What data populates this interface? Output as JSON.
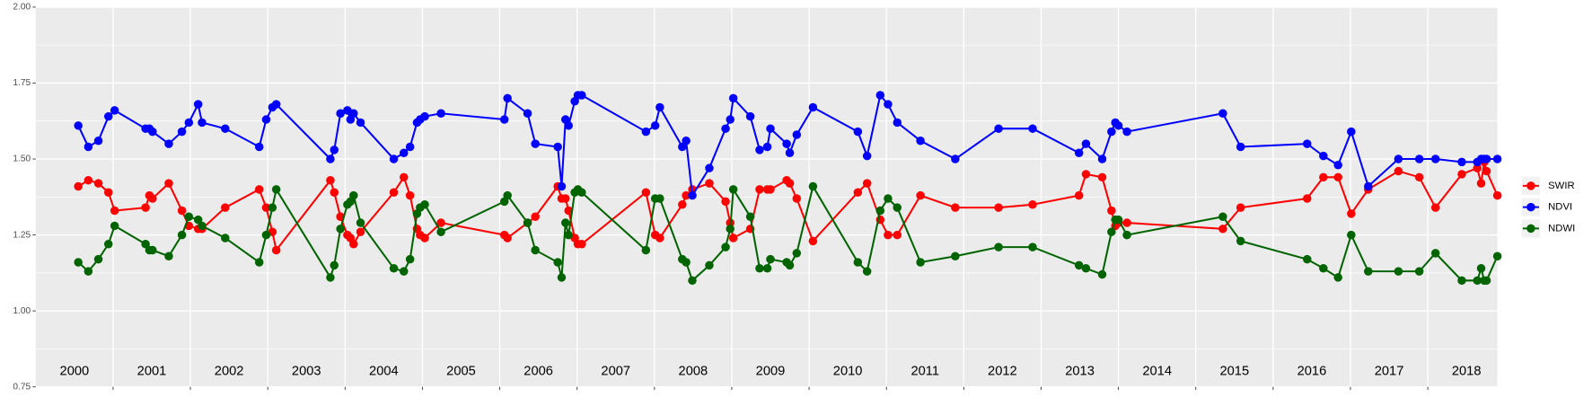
{
  "chart_data": {
    "type": "line",
    "x": [
      2000.55,
      2000.68,
      2000.81,
      2000.94,
      2001.02,
      2001.42,
      2001.47,
      2001.51,
      2001.72,
      2001.89,
      2001.98,
      2002.1,
      2002.15,
      2002.45,
      2002.89,
      2002.98,
      2003.06,
      2003.11,
      2003.81,
      2003.86,
      2003.94,
      2004.03,
      2004.07,
      2004.11,
      2004.2,
      2004.63,
      2004.76,
      2004.84,
      2004.93,
      2004.97,
      2005.03,
      2005.24,
      2006.06,
      2006.1,
      2006.36,
      2006.46,
      2006.75,
      2006.8,
      2006.85,
      2006.89,
      2006.97,
      2007.01,
      2007.06,
      2007.89,
      2008.01,
      2008.07,
      2008.36,
      2008.41,
      2008.49,
      2008.71,
      2008.92,
      2008.98,
      2009.02,
      2009.24,
      2009.36,
      2009.46,
      2009.5,
      2009.71,
      2009.75,
      2009.84,
      2010.05,
      2010.63,
      2010.75,
      2010.92,
      2011.02,
      2011.14,
      2011.44,
      2011.89,
      2012.45,
      2012.89,
      2013.49,
      2013.58,
      2013.79,
      2013.91,
      2013.96,
      2014.0,
      2014.11,
      2015.35,
      2015.58,
      2016.44,
      2016.65,
      2016.84,
      2017.01,
      2017.23,
      2017.62,
      2017.89,
      2018.1,
      2018.44,
      2018.64,
      2018.69,
      2018.73,
      2018.76,
      2018.9
    ],
    "series": [
      {
        "name": "SWIR",
        "color": "#ff0000",
        "values": [
          1.41,
          1.43,
          1.42,
          1.39,
          1.33,
          1.34,
          1.38,
          1.37,
          1.42,
          1.33,
          1.28,
          1.27,
          1.27,
          1.34,
          1.4,
          1.34,
          1.26,
          1.2,
          1.43,
          1.39,
          1.31,
          1.25,
          1.24,
          1.22,
          1.26,
          1.39,
          1.44,
          1.38,
          1.27,
          1.25,
          1.24,
          1.29,
          1.25,
          1.24,
          1.29,
          1.31,
          1.41,
          1.37,
          1.37,
          1.33,
          1.24,
          1.22,
          1.22,
          1.39,
          1.25,
          1.24,
          1.35,
          1.38,
          1.4,
          1.42,
          1.36,
          1.29,
          1.24,
          1.27,
          1.4,
          1.4,
          1.4,
          1.43,
          1.42,
          1.37,
          1.23,
          1.39,
          1.42,
          1.3,
          1.25,
          1.25,
          1.38,
          1.34,
          1.34,
          1.35,
          1.38,
          1.45,
          1.44,
          1.33,
          1.28,
          1.29,
          1.29,
          1.27,
          1.34,
          1.37,
          1.44,
          1.44,
          1.32,
          1.4,
          1.46,
          1.44,
          1.34,
          1.45,
          1.47,
          1.42,
          1.49,
          1.46,
          1.38
        ]
      },
      {
        "name": "NDVI",
        "color": "#0000ff",
        "values": [
          1.61,
          1.54,
          1.56,
          1.64,
          1.66,
          1.6,
          1.6,
          1.59,
          1.55,
          1.59,
          1.62,
          1.68,
          1.62,
          1.6,
          1.54,
          1.63,
          1.67,
          1.68,
          1.5,
          1.53,
          1.65,
          1.66,
          1.63,
          1.65,
          1.62,
          1.5,
          1.52,
          1.54,
          1.62,
          1.63,
          1.64,
          1.65,
          1.63,
          1.7,
          1.65,
          1.55,
          1.54,
          1.41,
          1.63,
          1.61,
          1.69,
          1.71,
          1.71,
          1.59,
          1.61,
          1.67,
          1.54,
          1.56,
          1.38,
          1.47,
          1.6,
          1.63,
          1.7,
          1.64,
          1.53,
          1.54,
          1.6,
          1.55,
          1.52,
          1.58,
          1.67,
          1.59,
          1.51,
          1.71,
          1.68,
          1.62,
          1.56,
          1.5,
          1.6,
          1.6,
          1.52,
          1.55,
          1.5,
          1.59,
          1.62,
          1.61,
          1.59,
          1.65,
          1.54,
          1.55,
          1.51,
          1.48,
          1.59,
          1.41,
          1.5,
          1.5,
          1.5,
          1.49,
          1.49,
          1.5,
          1.5,
          1.5,
          1.5
        ]
      },
      {
        "name": "NDWI",
        "color": "#006400",
        "values": [
          1.16,
          1.13,
          1.17,
          1.22,
          1.28,
          1.22,
          1.2,
          1.2,
          1.18,
          1.25,
          1.31,
          1.3,
          1.28,
          1.24,
          1.16,
          1.25,
          1.34,
          1.4,
          1.11,
          1.15,
          1.27,
          1.35,
          1.36,
          1.38,
          1.29,
          1.14,
          1.13,
          1.17,
          1.32,
          1.34,
          1.35,
          1.26,
          1.36,
          1.38,
          1.29,
          1.2,
          1.16,
          1.11,
          1.29,
          1.25,
          1.39,
          1.4,
          1.39,
          1.2,
          1.37,
          1.37,
          1.17,
          1.16,
          1.1,
          1.15,
          1.21,
          1.27,
          1.4,
          1.31,
          1.14,
          1.14,
          1.17,
          1.16,
          1.15,
          1.19,
          1.41,
          1.16,
          1.13,
          1.33,
          1.37,
          1.34,
          1.16,
          1.18,
          1.21,
          1.21,
          1.15,
          1.14,
          1.12,
          1.26,
          1.3,
          1.3,
          1.25,
          1.31,
          1.23,
          1.17,
          1.14,
          1.11,
          1.25,
          1.13,
          1.13,
          1.13,
          1.19,
          1.1,
          1.1,
          1.14,
          1.1,
          1.1,
          1.18
        ]
      }
    ],
    "xlim": [
      2000,
      2018.9
    ],
    "xticks": [
      2001,
      2002,
      2003,
      2004,
      2005,
      2006,
      2007,
      2008,
      2009,
      2010,
      2011,
      2012,
      2013,
      2014,
      2015,
      2016,
      2017,
      2018
    ],
    "ylim": [
      0.75,
      2.0
    ],
    "yticks": [
      {
        "value": 0.75,
        "label": "0.75"
      },
      {
        "value": 1.0,
        "label": "1.00"
      },
      {
        "value": 1.25,
        "label": "1.25"
      },
      {
        "value": 1.5,
        "label": "1.50"
      },
      {
        "value": 1.75,
        "label": "1.75"
      },
      {
        "value": 2.0,
        "label": "2.00"
      }
    ],
    "annotations": [
      {
        "x": 2000.5,
        "text": "2000"
      },
      {
        "x": 2001.5,
        "text": "2001"
      },
      {
        "x": 2002.5,
        "text": "2002"
      },
      {
        "x": 2003.5,
        "text": "2003"
      },
      {
        "x": 2004.5,
        "text": "2004"
      },
      {
        "x": 2005.5,
        "text": "2005"
      },
      {
        "x": 2006.5,
        "text": "2006"
      },
      {
        "x": 2007.5,
        "text": "2007"
      },
      {
        "x": 2008.5,
        "text": "2008"
      },
      {
        "x": 2009.5,
        "text": "2009"
      },
      {
        "x": 2010.5,
        "text": "2010"
      },
      {
        "x": 2011.5,
        "text": "2011"
      },
      {
        "x": 2012.5,
        "text": "2012"
      },
      {
        "x": 2013.5,
        "text": "2013"
      },
      {
        "x": 2014.5,
        "text": "2014"
      },
      {
        "x": 2015.5,
        "text": "2015"
      },
      {
        "x": 2016.5,
        "text": "2016"
      },
      {
        "x": 2017.5,
        "text": "2017"
      },
      {
        "x": 2018.5,
        "text": "2018"
      }
    ],
    "grid": true,
    "legend": "right"
  }
}
